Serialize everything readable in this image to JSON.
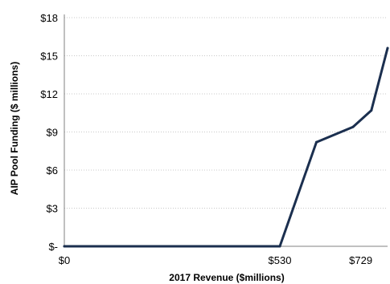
{
  "chart_data": {
    "type": "line",
    "title": "",
    "xlabel": "2017 Revenue ($millions)",
    "ylabel": "AIP Pool Funding ($ millions)",
    "ylim": [
      0,
      18
    ],
    "xlim": [
      0,
      795
    ],
    "grid": true,
    "y_ticks": [
      0,
      3,
      6,
      9,
      12,
      15,
      18
    ],
    "y_tick_labels": [
      "$-",
      "$3",
      "$6",
      "$9",
      "$12",
      "$15",
      "$18"
    ],
    "x_ticks": [
      0,
      530,
      729
    ],
    "x_tick_labels": [
      "$0",
      "$530",
      "$729"
    ],
    "series": [
      {
        "color": "#1b2f4f",
        "x": [
          0,
          530,
          620,
          710,
          755,
          795
        ],
        "y": [
          0,
          0,
          8.2,
          9.4,
          10.7,
          15.6
        ]
      }
    ]
  }
}
